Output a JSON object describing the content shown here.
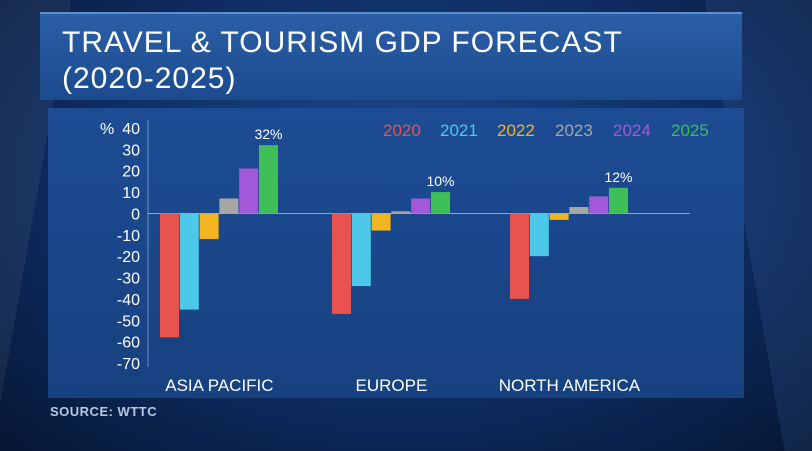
{
  "title": {
    "line1": "TRAVEL & TOURISM GDP FORECAST",
    "line2": "(2020-2025)"
  },
  "source": "SOURCE: WTTC",
  "chart_data": {
    "type": "bar",
    "y_unit_label": "%",
    "ylim": [
      -70,
      40
    ],
    "yticks": [
      40,
      30,
      20,
      10,
      0,
      -10,
      -20,
      -30,
      -40,
      -50,
      -60,
      -70
    ],
    "categories": [
      "ASIA PACIFIC",
      "EUROPE",
      "NORTH AMERICA"
    ],
    "series": [
      {
        "name": "2020",
        "color": "#e9534f",
        "values": [
          -58,
          -47,
          -40
        ]
      },
      {
        "name": "2021",
        "color": "#4cc9e8",
        "values": [
          -45,
          -34,
          -20
        ]
      },
      {
        "name": "2022",
        "color": "#f2b521",
        "values": [
          -12,
          -8,
          -3
        ]
      },
      {
        "name": "2023",
        "color": "#a7a7a7",
        "values": [
          7,
          1,
          3
        ]
      },
      {
        "name": "2024",
        "color": "#a259d9",
        "values": [
          21,
          7,
          8
        ]
      },
      {
        "name": "2025",
        "color": "#3fbf57",
        "values": [
          32,
          10,
          12
        ]
      }
    ],
    "data_labels": [
      {
        "category": "ASIA PACIFIC",
        "series": "2025",
        "text": "32%"
      },
      {
        "category": "EUROPE",
        "series": "2025",
        "text": "10%"
      },
      {
        "category": "NORTH AMERICA",
        "series": "2025",
        "text": "12%"
      }
    ],
    "legend_position": "top-right",
    "grid": false
  }
}
